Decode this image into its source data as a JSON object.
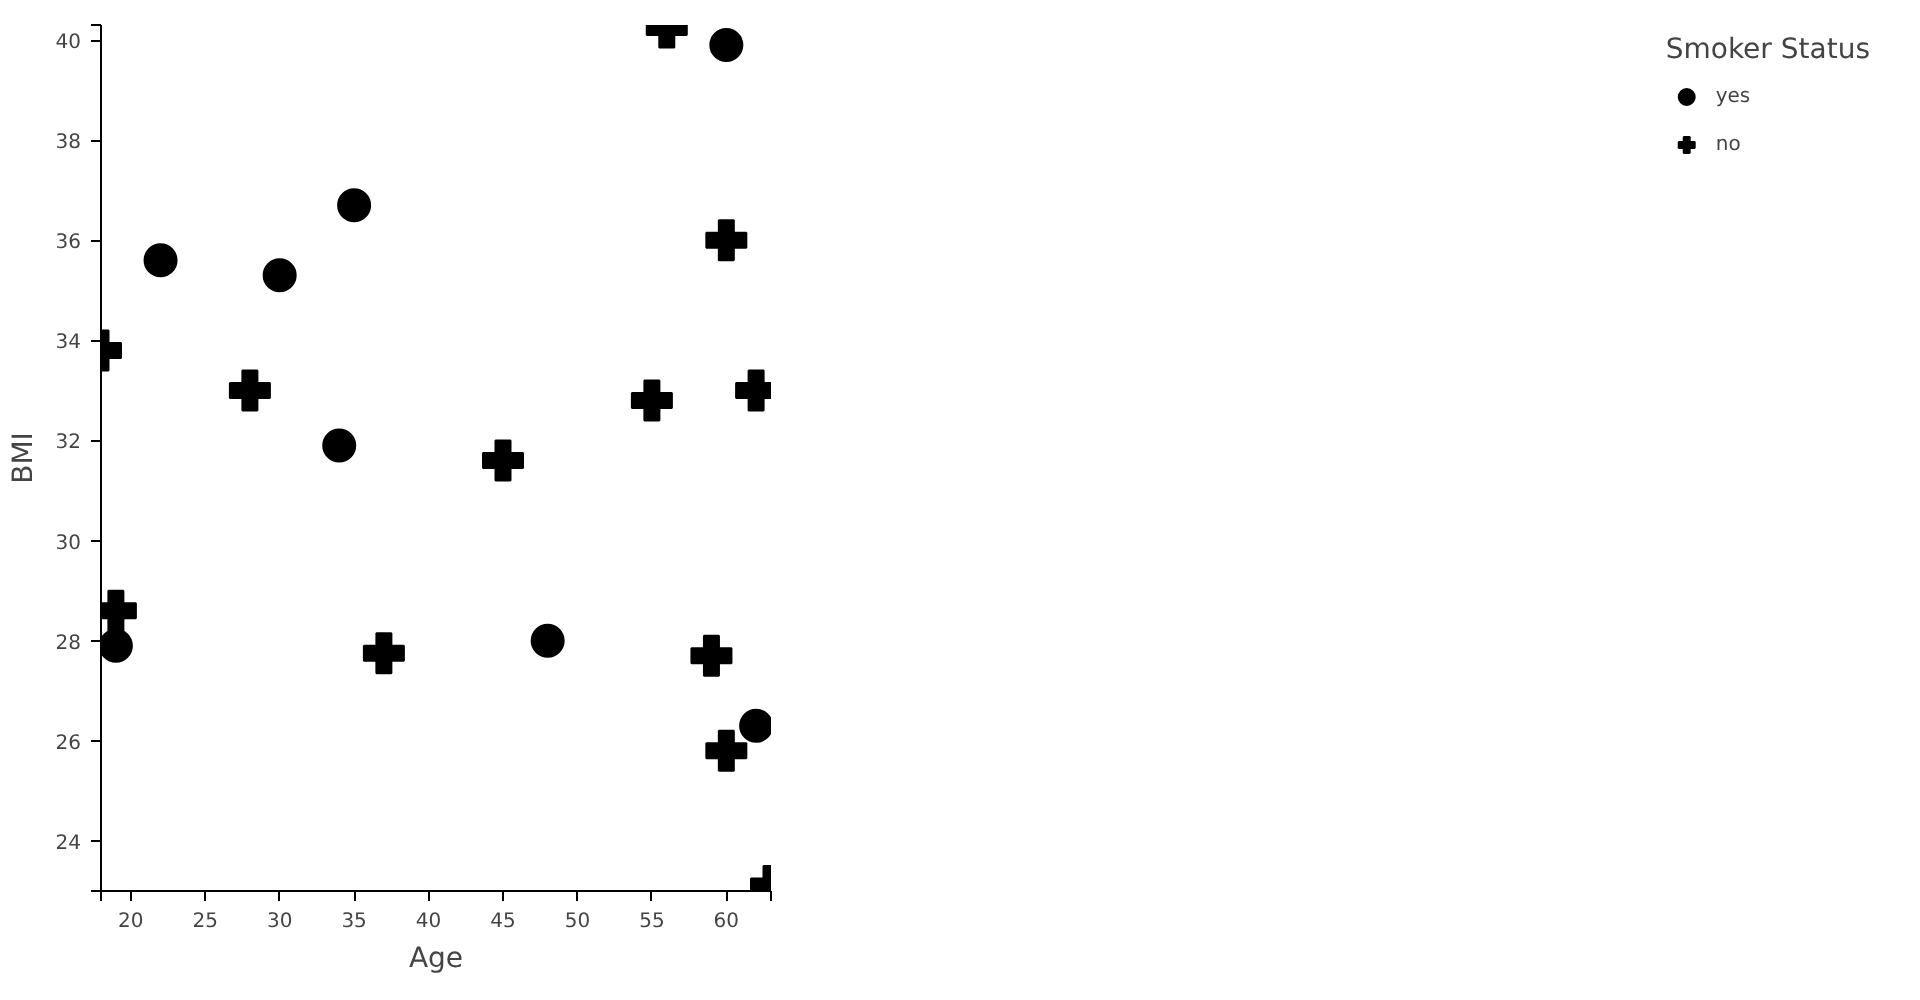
{
  "chart_data": {
    "type": "scatter",
    "xlabel": "Age",
    "ylabel": "BMI",
    "legend_title": "Smoker Status",
    "legend": "right",
    "grid": false,
    "xlim": [
      18,
      63
    ],
    "ylim": [
      23,
      40.3
    ],
    "xticks": [
      {
        "value": 18,
        "label": null
      },
      20,
      25,
      30,
      35,
      40,
      45,
      50,
      55,
      60,
      {
        "value": 63,
        "label": null
      }
    ],
    "yticks": [
      {
        "value": 23,
        "label": null
      },
      24,
      26,
      28,
      30,
      32,
      34,
      36,
      38,
      40,
      {
        "value": 40.3,
        "label": null
      }
    ],
    "series": [
      {
        "name": "yes",
        "color": "#000000",
        "marker": "circle",
        "x": [
          19,
          22,
          30,
          34,
          35,
          48,
          60,
          62
        ],
        "values": [
          27.9,
          35.6,
          35.3,
          31.9,
          36.7,
          28.0,
          39.9,
          26.3
        ]
      },
      {
        "name": "no",
        "color": "#000000",
        "marker": "cross",
        "x": [
          18,
          19,
          28,
          37,
          45,
          55,
          56,
          59,
          60,
          60,
          62,
          63
        ],
        "values": [
          33.8,
          28.6,
          33.0,
          27.75,
          31.6,
          32.8,
          40.25,
          27.7,
          36.0,
          25.8,
          33.0,
          23.1
        ]
      }
    ]
  }
}
